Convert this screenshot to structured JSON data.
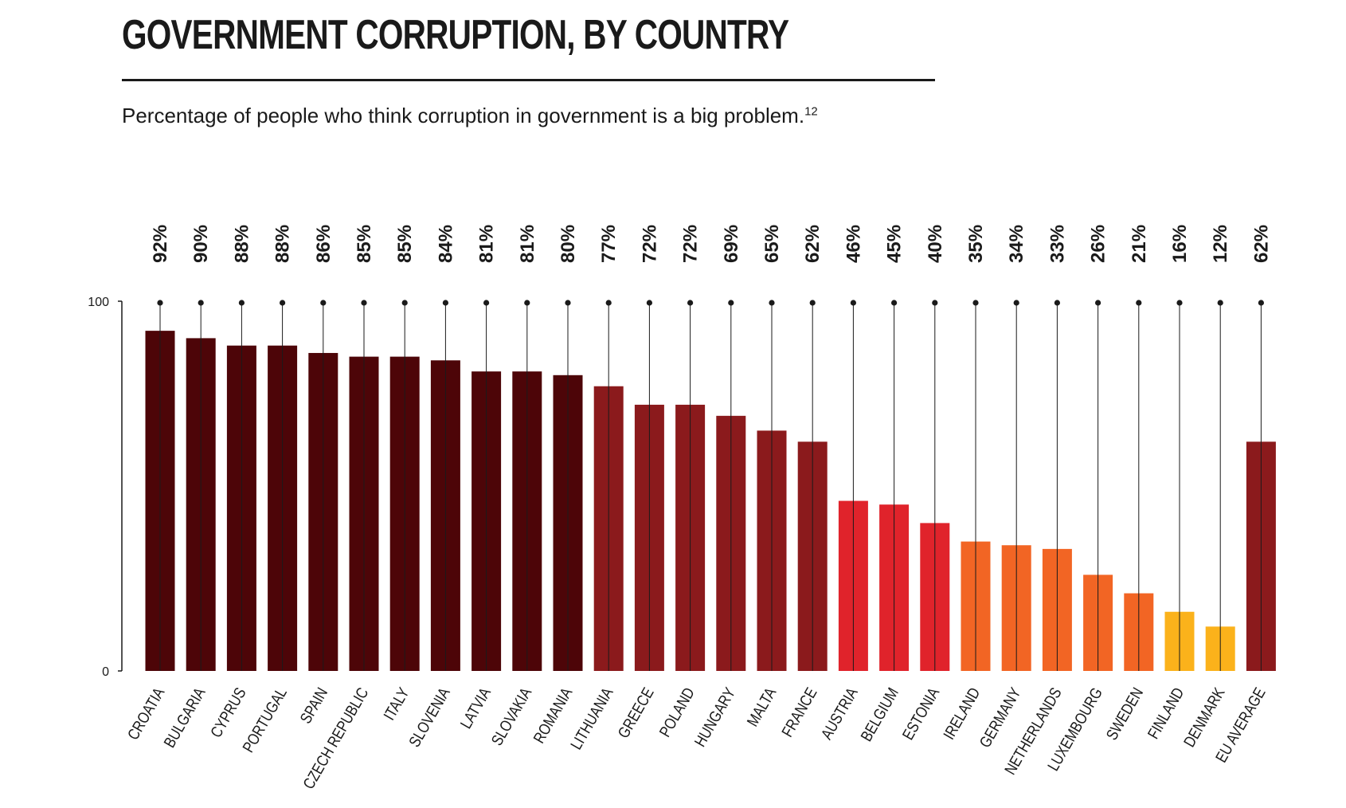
{
  "header": {
    "title": "GOVERNMENT CORRUPTION, BY COUNTRY",
    "subtitle": "Percentage of people who think corruption in government is a big problem.",
    "footnote": "12"
  },
  "chart_data": {
    "type": "bar",
    "title": "GOVERNMENT CORRUPTION, BY COUNTRY",
    "subtitle": "Percentage of people who think corruption in government is a big problem.",
    "categories": [
      "CROATIA",
      "BULGARIA",
      "CYPRUS",
      "PORTUGAL",
      "SPAIN",
      "CZECH REPUBLIC",
      "ITALY",
      "SLOVENIA",
      "LATVIA",
      "SLOVAKIA",
      "ROMANIA",
      "LITHUANIA",
      "GREECE",
      "POLAND",
      "HUNGARY",
      "MALTA",
      "FRANCE",
      "AUSTRIA",
      "BELGIUM",
      "ESTONIA",
      "IRELAND",
      "GERMANY",
      "NETHERLANDS",
      "LUXEMBOURG",
      "SWEDEN",
      "FINLAND",
      "DENMARK",
      "EU AVERAGE"
    ],
    "values": [
      92,
      90,
      88,
      88,
      86,
      85,
      85,
      84,
      81,
      81,
      80,
      77,
      72,
      72,
      69,
      65,
      62,
      46,
      45,
      40,
      35,
      34,
      33,
      26,
      21,
      16,
      12,
      62
    ],
    "value_labels": [
      "92%",
      "90%",
      "88%",
      "88%",
      "86%",
      "85%",
      "85%",
      "84%",
      "81%",
      "81%",
      "80%",
      "77%",
      "72%",
      "72%",
      "69%",
      "65%",
      "62%",
      "46%",
      "45%",
      "40%",
      "35%",
      "34%",
      "33%",
      "26%",
      "21%",
      "16%",
      "12%",
      "62%"
    ],
    "ylim": [
      0,
      100
    ],
    "y_ticks": [
      "0",
      "100"
    ],
    "xlabel": "",
    "ylabel": "",
    "grid": false,
    "colors": {
      "darkest": "#4d0508",
      "dark": "#8b1a1c",
      "red": "#e0232b",
      "orange": "#f26524",
      "yellow": "#fbb21b",
      "stem": "#1a1a1a"
    },
    "bar_color_keys": [
      "darkest",
      "darkest",
      "darkest",
      "darkest",
      "darkest",
      "darkest",
      "darkest",
      "darkest",
      "darkest",
      "darkest",
      "darkest",
      "dark",
      "dark",
      "dark",
      "dark",
      "dark",
      "dark",
      "red",
      "red",
      "red",
      "orange",
      "orange",
      "orange",
      "orange",
      "orange",
      "yellow",
      "yellow",
      "dark"
    ]
  }
}
